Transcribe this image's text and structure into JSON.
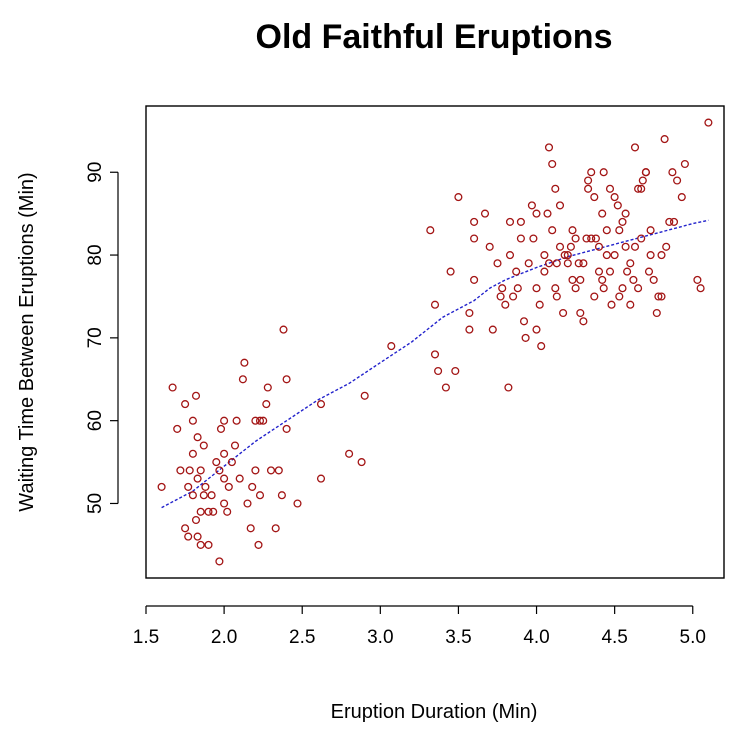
{
  "chart_data": {
    "type": "scatter",
    "title": "Old Faithful Eruptions",
    "xlabel": "Eruption Duration (Min)",
    "ylabel": "Waiting Time Between Eruptions (Min)",
    "xlim": [
      1.5,
      5.2
    ],
    "ylim": [
      41,
      98
    ],
    "x_ticks": [
      1.5,
      2.0,
      2.5,
      3.0,
      3.5,
      4.0,
      4.5,
      5.0
    ],
    "x_tick_labels": [
      "1.5",
      "2.0",
      "2.5",
      "3.0",
      "3.5",
      "4.0",
      "4.5",
      "5.0"
    ],
    "y_ticks": [
      50,
      60,
      70,
      80,
      90
    ],
    "y_tick_labels": [
      "50",
      "60",
      "70",
      "80",
      "90"
    ],
    "grid": false,
    "colors": {
      "points": "#a31515",
      "trend": "#2222cc"
    },
    "series": [
      {
        "kind": "points",
        "x": [
          1.6,
          1.67,
          1.7,
          1.72,
          1.75,
          1.75,
          1.77,
          1.77,
          1.78,
          1.8,
          1.8,
          1.8,
          1.82,
          1.82,
          1.83,
          1.83,
          1.83,
          1.85,
          1.85,
          1.85,
          1.87,
          1.87,
          1.88,
          1.9,
          1.9,
          1.92,
          1.93,
          1.95,
          1.97,
          1.97,
          1.98,
          2.0,
          2.0,
          2.0,
          2.0,
          2.02,
          2.03,
          2.05,
          2.07,
          2.08,
          2.1,
          2.12,
          2.13,
          2.15,
          2.17,
          2.18,
          2.2,
          2.2,
          2.22,
          2.23,
          2.23,
          2.25,
          2.27,
          2.28,
          2.3,
          2.33,
          2.35,
          2.37,
          2.38,
          2.4,
          2.4,
          2.47,
          2.62,
          2.62,
          2.8,
          2.88,
          2.9,
          3.07,
          3.32,
          3.35,
          3.35,
          3.37,
          3.42,
          3.45,
          3.48,
          3.5,
          3.57,
          3.57,
          3.6,
          3.6,
          3.6,
          3.67,
          3.7,
          3.72,
          3.75,
          3.77,
          3.78,
          3.8,
          3.82,
          3.83,
          3.83,
          3.85,
          3.87,
          3.88,
          3.9,
          3.9,
          3.92,
          3.93,
          3.95,
          3.97,
          3.98,
          4.0,
          4.0,
          4.0,
          4.02,
          4.03,
          4.05,
          4.05,
          4.07,
          4.08,
          4.08,
          4.1,
          4.1,
          4.12,
          4.12,
          4.13,
          4.13,
          4.15,
          4.15,
          4.17,
          4.18,
          4.2,
          4.2,
          4.22,
          4.23,
          4.23,
          4.25,
          4.25,
          4.27,
          4.28,
          4.28,
          4.3,
          4.3,
          4.32,
          4.33,
          4.33,
          4.35,
          4.35,
          4.37,
          4.37,
          4.38,
          4.4,
          4.4,
          4.42,
          4.42,
          4.43,
          4.43,
          4.45,
          4.45,
          4.47,
          4.47,
          4.48,
          4.5,
          4.5,
          4.52,
          4.53,
          4.53,
          4.55,
          4.55,
          4.57,
          4.57,
          4.58,
          4.6,
          4.6,
          4.62,
          4.63,
          4.63,
          4.65,
          4.65,
          4.67,
          4.67,
          4.68,
          4.7,
          4.7,
          4.72,
          4.73,
          4.73,
          4.75,
          4.77,
          4.78,
          4.8,
          4.8,
          4.82,
          4.83,
          4.85,
          4.87,
          4.88,
          4.9,
          4.93,
          4.95,
          5.03,
          5.05,
          5.1
        ],
        "y": [
          52,
          64,
          59,
          54,
          47,
          62,
          46,
          52,
          54,
          51,
          56,
          60,
          48,
          63,
          46,
          53,
          58,
          45,
          49,
          54,
          51,
          57,
          52,
          45,
          49,
          51,
          49,
          55,
          54,
          43,
          59,
          50,
          53,
          56,
          60,
          49,
          52,
          55,
          57,
          60,
          53,
          65,
          67,
          50,
          47,
          52,
          54,
          60,
          45,
          60,
          51,
          60,
          62,
          64,
          54,
          47,
          54,
          51,
          71,
          59,
          65,
          50,
          62,
          53,
          56,
          55,
          63,
          69,
          83,
          68,
          74,
          66,
          64,
          78,
          66,
          87,
          71,
          73,
          84,
          77,
          82,
          85,
          81,
          71,
          79,
          75,
          76,
          74,
          64,
          80,
          84,
          75,
          78,
          76,
          82,
          84,
          72,
          70,
          79,
          86,
          82,
          71,
          85,
          76,
          74,
          69,
          80,
          78,
          85,
          79,
          93,
          83,
          91,
          76,
          88,
          75,
          79,
          81,
          86,
          73,
          80,
          79,
          80,
          81,
          77,
          83,
          82,
          76,
          79,
          77,
          73,
          72,
          79,
          82,
          89,
          88,
          90,
          82,
          75,
          87,
          82,
          78,
          81,
          85,
          77,
          76,
          90,
          83,
          80,
          78,
          88,
          74,
          87,
          80,
          86,
          75,
          83,
          76,
          84,
          81,
          85,
          78,
          74,
          79,
          77,
          93,
          81,
          88,
          76,
          82,
          88,
          89,
          90,
          90,
          78,
          80,
          83,
          77,
          73,
          75,
          80,
          75,
          94,
          81,
          84,
          90,
          84,
          89,
          87,
          91,
          77,
          76,
          96
        ]
      },
      {
        "kind": "trend",
        "x": [
          1.6,
          1.8,
          2.0,
          2.2,
          2.4,
          2.6,
          2.8,
          3.0,
          3.2,
          3.4,
          3.6,
          3.7,
          3.8,
          4.0,
          4.2,
          4.4,
          4.6,
          4.8,
          5.0,
          5.1
        ],
        "y": [
          49.5,
          51.5,
          54.5,
          57.5,
          60.0,
          62.5,
          64.5,
          67.0,
          69.5,
          72.5,
          74.5,
          76.0,
          77.0,
          78.5,
          79.8,
          80.8,
          81.8,
          82.8,
          83.8,
          84.2
        ]
      }
    ]
  }
}
